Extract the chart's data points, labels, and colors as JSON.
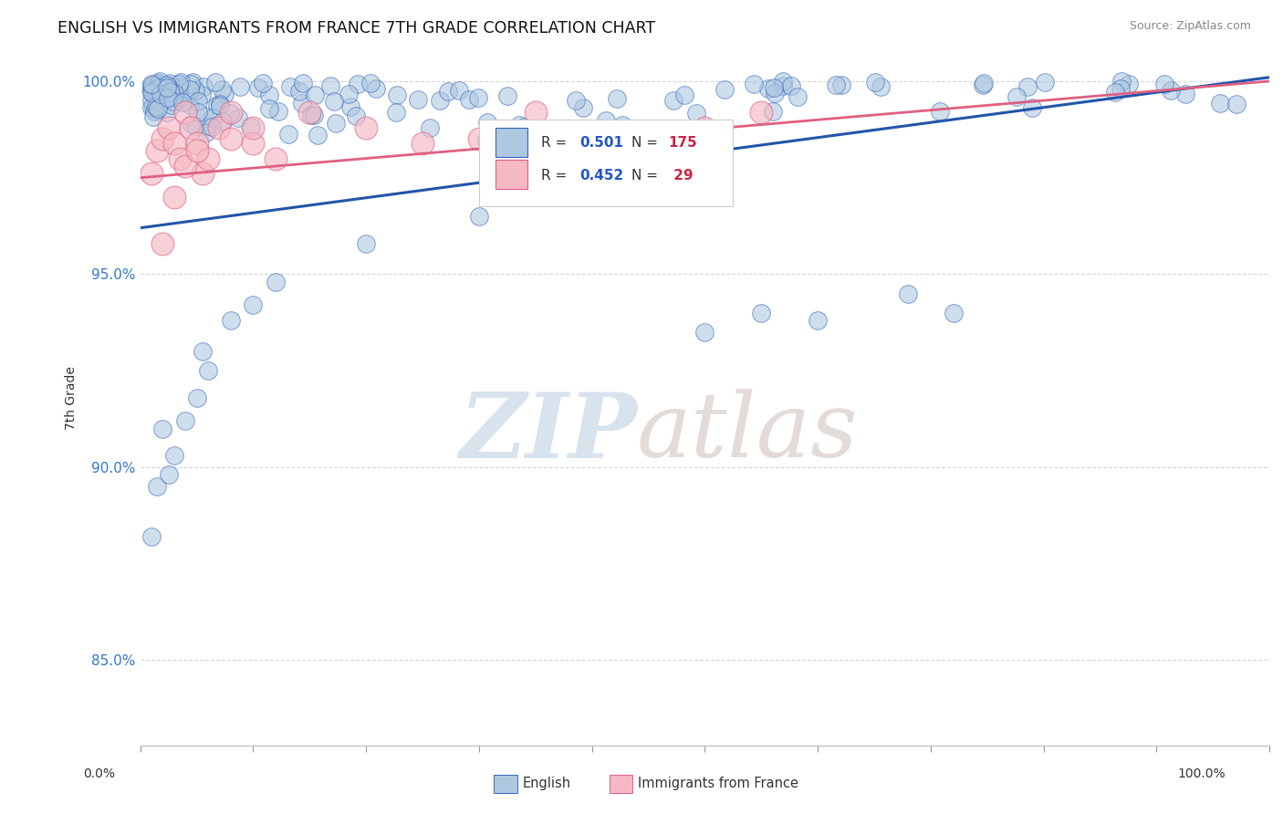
{
  "title": "ENGLISH VS IMMIGRANTS FROM FRANCE 7TH GRADE CORRELATION CHART",
  "source_text": "Source: ZipAtlas.com",
  "ylabel": "7th Grade",
  "xlim": [
    0.0,
    1.0
  ],
  "ylim": [
    0.828,
    1.008
  ],
  "yticks": [
    0.85,
    0.9,
    0.95,
    1.0
  ],
  "ytick_labels": [
    "85.0%",
    "90.0%",
    "95.0%",
    "100.0%"
  ],
  "blue_color": "#aec8e0",
  "blue_edge_color": "#3366bb",
  "pink_color": "#f5b8c4",
  "pink_edge_color": "#e06080",
  "blue_line_color": "#2255aa",
  "pink_line_color": "#e06080",
  "blue_line_y0": 0.962,
  "blue_line_y1": 1.001,
  "pink_line_y0": 0.975,
  "pink_line_y1": 1.0,
  "watermark_zip_color": "#c8d8e8",
  "watermark_atlas_color": "#d8ccc8",
  "legend_r_color": "#2255cc",
  "legend_n_color": "#cc2244"
}
